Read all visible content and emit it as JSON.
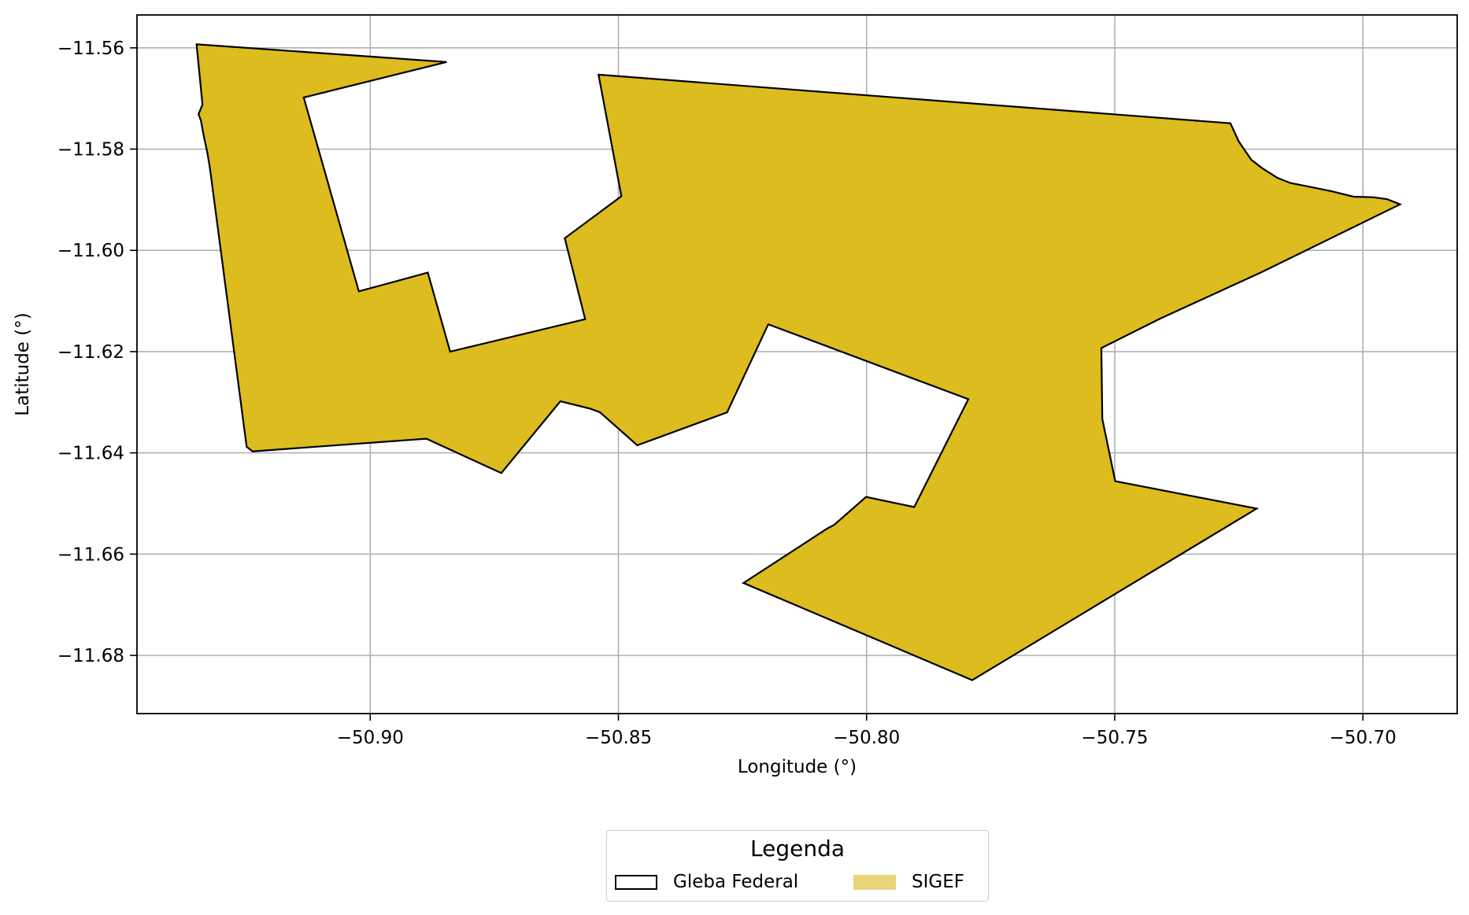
{
  "chart_data": {
    "type": "map",
    "xlabel": "Longitude (°)",
    "ylabel": "Latitude (°)",
    "xlim": [
      -50.947,
      -50.681
    ],
    "ylim": [
      -11.6915,
      -11.5535
    ],
    "xticks": [
      -50.9,
      -50.85,
      -50.8,
      -50.75,
      -50.7
    ],
    "xtick_labels": [
      "−50.90",
      "−50.85",
      "−50.80",
      "−50.75",
      "−50.70"
    ],
    "yticks": [
      -11.56,
      -11.58,
      -11.6,
      -11.62,
      -11.64,
      -11.66,
      -11.68
    ],
    "ytick_labels": [
      "−11.56",
      "−11.58",
      "−11.60",
      "−11.62",
      "−11.64",
      "−11.66",
      "−11.68"
    ],
    "grid": true,
    "legend": {
      "title": "Legenda",
      "placement": "bottom-center",
      "entries": [
        {
          "label": "Gleba Federal",
          "style": "outline",
          "color": "#000000"
        },
        {
          "label": "SIGEF",
          "style": "fill",
          "color": "#e8d47a"
        }
      ]
    },
    "fill_color": "#dcbc1e",
    "edge_color": "#000000",
    "polygon_lonlat": [
      [
        -50.935,
        -11.5593
      ],
      [
        -50.8846,
        -11.5628
      ],
      [
        -50.9134,
        -11.5698
      ],
      [
        -50.9023,
        -11.6081
      ],
      [
        -50.8884,
        -11.6044
      ],
      [
        -50.8839,
        -11.62
      ],
      [
        -50.8567,
        -11.6136
      ],
      [
        -50.8608,
        -11.5976
      ],
      [
        -50.8494,
        -11.5893
      ],
      [
        -50.854,
        -11.5653
      ],
      [
        -50.7267,
        -11.5749
      ],
      [
        -50.725,
        -11.5785
      ],
      [
        -50.7225,
        -11.5821
      ],
      [
        -50.7204,
        -11.5837
      ],
      [
        -50.7172,
        -11.5857
      ],
      [
        -50.7146,
        -11.5867
      ],
      [
        -50.711,
        -11.5874
      ],
      [
        -50.7064,
        -11.5883
      ],
      [
        -50.7019,
        -11.5894
      ],
      [
        -50.698,
        -11.5895
      ],
      [
        -50.6951,
        -11.5899
      ],
      [
        -50.6925,
        -11.5909
      ],
      [
        -50.7204,
        -11.6043
      ],
      [
        -50.7409,
        -11.6135
      ],
      [
        -50.7527,
        -11.6193
      ],
      [
        -50.7525,
        -11.6333
      ],
      [
        -50.7499,
        -11.6456
      ],
      [
        -50.7214,
        -11.651
      ],
      [
        -50.7787,
        -11.6849
      ],
      [
        -50.8248,
        -11.6657
      ],
      [
        -50.808,
        -11.655
      ],
      [
        -50.8065,
        -11.6542
      ],
      [
        -50.8001,
        -11.6487
      ],
      [
        -50.7904,
        -11.6507
      ],
      [
        -50.7795,
        -11.6294
      ],
      [
        -50.8198,
        -11.6146
      ],
      [
        -50.8281,
        -11.632
      ],
      [
        -50.8462,
        -11.6385
      ],
      [
        -50.8537,
        -11.632
      ],
      [
        -50.8556,
        -11.6313
      ],
      [
        -50.8617,
        -11.6298
      ],
      [
        -50.8736,
        -11.644
      ],
      [
        -50.8887,
        -11.6372
      ],
      [
        -50.9237,
        -11.6397
      ],
      [
        -50.9249,
        -11.6388
      ],
      [
        -50.9323,
        -11.5838
      ],
      [
        -50.9328,
        -11.5808
      ],
      [
        -50.9335,
        -11.5776
      ],
      [
        -50.9341,
        -11.5744
      ],
      [
        -50.9346,
        -11.5731
      ],
      [
        -50.9338,
        -11.5712
      ],
      [
        -50.935,
        -11.5593
      ]
    ]
  }
}
